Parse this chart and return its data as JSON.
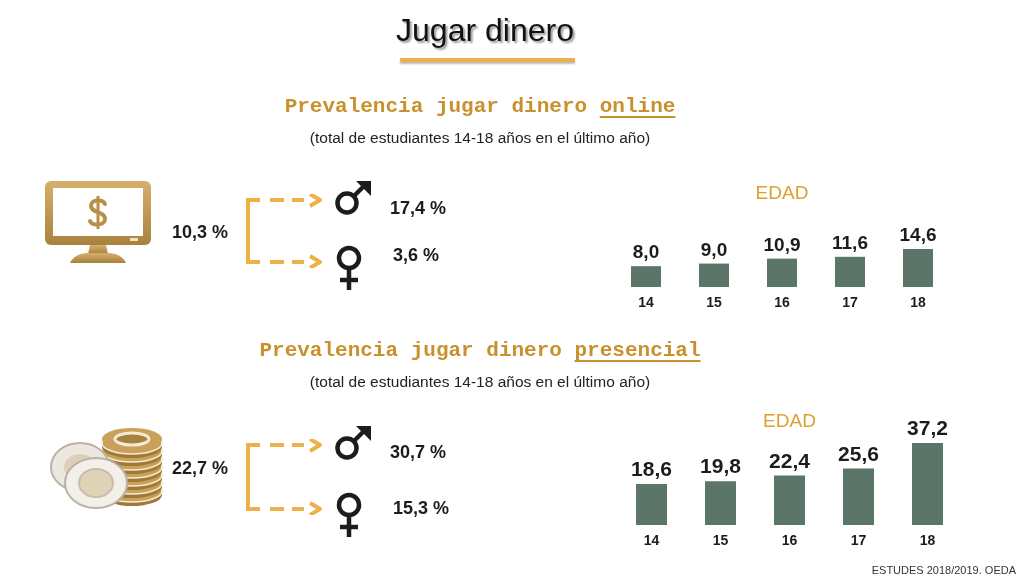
{
  "chart_data": [
    {
      "type": "other",
      "title": "Jugar dinero"
    },
    {
      "type": "other",
      "title": "Prevalencia jugar dinero online",
      "subtitle": "(total de estudiantes 14-18 años en el último año)",
      "annotations": [
        "10,3 %",
        "17,4 %",
        "3,6 %"
      ]
    },
    {
      "type": "bar",
      "title": "EDAD",
      "categories": [
        "14",
        "15",
        "16",
        "17",
        "18"
      ],
      "values": [
        8.0,
        9.0,
        10.9,
        11.6,
        14.6
      ],
      "value_labels": [
        "8,0",
        "9,0",
        "10,9",
        "11,6",
        "14,6"
      ],
      "color": "#5b7568"
    },
    {
      "type": "other",
      "title": "Prevalencia jugar dinero presencial",
      "subtitle": "(total de estudiantes 14-18 años en el último año)",
      "annotations": [
        "22,7 %",
        "30,7 %",
        "15,3 %"
      ]
    },
    {
      "type": "bar",
      "title": "EDAD",
      "categories": [
        "14",
        "15",
        "16",
        "17",
        "18"
      ],
      "values": [
        18.6,
        19.8,
        22.4,
        25.6,
        37.2
      ],
      "value_labels": [
        "18,6",
        "19,8",
        "22,4",
        "25,6",
        "37,2"
      ],
      "color": "#5b7568",
      "annotations": [
        "ESTUDES 2018/2019. OEDA"
      ]
    }
  ]
}
